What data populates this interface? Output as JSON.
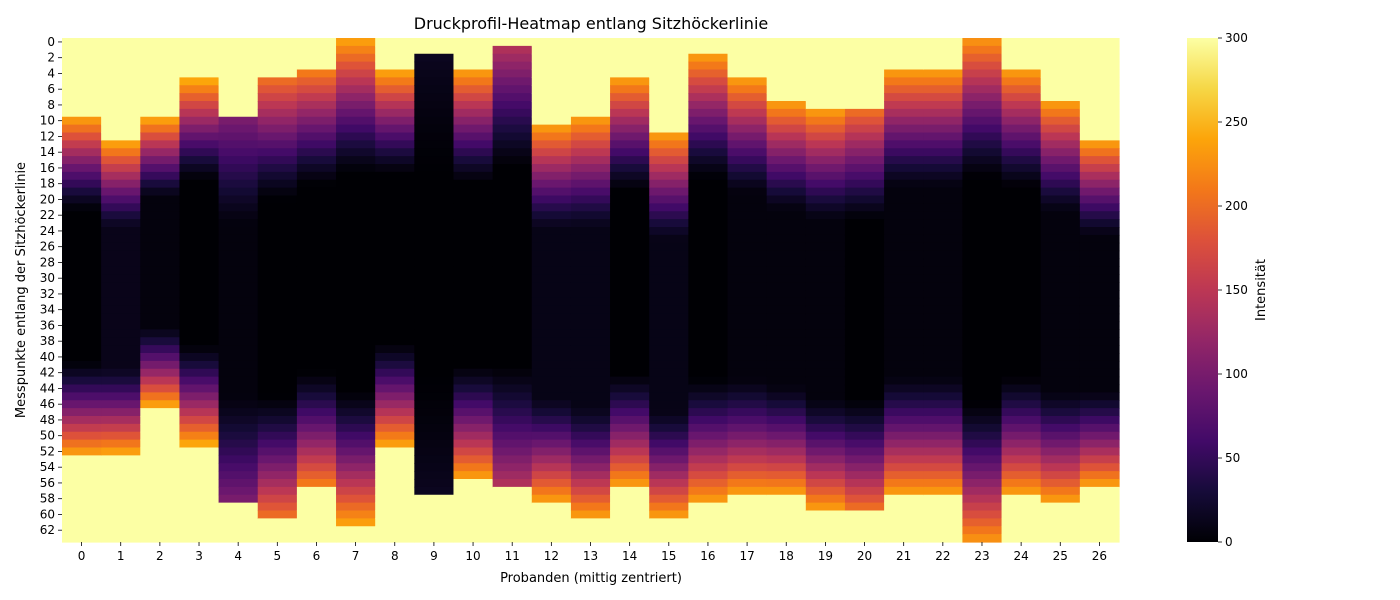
{
  "chart_data": {
    "type": "heatmap",
    "title": "Druckprofil-Heatmap entlang Sitzhöckerlinie",
    "xlabel": "Probanden (mittig zentriert)",
    "ylabel": "Messpunkte entlang der Sitzhöckerlinie",
    "colorbar_label": "Intensität",
    "colormap": "inferno",
    "vmin": 0,
    "vmax": 300,
    "colorbar_ticks": [
      0,
      50,
      100,
      150,
      200,
      250,
      300
    ],
    "x_ticks": [
      "0",
      "1",
      "2",
      "3",
      "4",
      "5",
      "6",
      "7",
      "8",
      "9",
      "10",
      "11",
      "12",
      "13",
      "14",
      "15",
      "16",
      "17",
      "18",
      "19",
      "20",
      "21",
      "22",
      "23",
      "24",
      "25",
      "26"
    ],
    "y_ticks": [
      "0",
      "2",
      "4",
      "6",
      "8",
      "10",
      "12",
      "14",
      "16",
      "18",
      "20",
      "22",
      "24",
      "26",
      "28",
      "30",
      "32",
      "34",
      "36",
      "38",
      "40",
      "42",
      "44",
      "46",
      "48",
      "50",
      "52",
      "54",
      "56",
      "58",
      "60",
      "62"
    ],
    "n_rows": 64,
    "background_value": 300,
    "columns": [
      {
        "subject": 0,
        "start": 10,
        "end": 52,
        "edge": 230,
        "floor": 0
      },
      {
        "subject": 1,
        "start": 13,
        "end": 52,
        "edge": 235,
        "floor": 12
      },
      {
        "subject": 2,
        "start": 10,
        "end": 46,
        "edge": 235,
        "floor": 5
      },
      {
        "subject": 3,
        "start": 5,
        "end": 51,
        "edge": 240,
        "floor": 0
      },
      {
        "subject": 4,
        "start": 10,
        "end": 58,
        "edge": 100,
        "floor": 5
      },
      {
        "subject": 5,
        "start": 5,
        "end": 60,
        "edge": 200,
        "floor": 0
      },
      {
        "subject": 6,
        "start": 4,
        "end": 56,
        "edge": 210,
        "floor": 0
      },
      {
        "subject": 7,
        "start": 0,
        "end": 61,
        "edge": 235,
        "floor": 0
      },
      {
        "subject": 8,
        "start": 4,
        "end": 51,
        "edge": 235,
        "floor": 0
      },
      {
        "subject": 9,
        "start": 2,
        "end": 57,
        "edge": 15,
        "floor": 0
      },
      {
        "subject": 10,
        "start": 4,
        "end": 55,
        "edge": 230,
        "floor": 0
      },
      {
        "subject": 11,
        "start": 1,
        "end": 56,
        "edge": 140,
        "floor": 0
      },
      {
        "subject": 12,
        "start": 11,
        "end": 58,
        "edge": 230,
        "floor": 10
      },
      {
        "subject": 13,
        "start": 10,
        "end": 60,
        "edge": 230,
        "floor": 10
      },
      {
        "subject": 14,
        "start": 5,
        "end": 56,
        "edge": 230,
        "floor": 0
      },
      {
        "subject": 15,
        "start": 12,
        "end": 60,
        "edge": 230,
        "floor": 10
      },
      {
        "subject": 16,
        "start": 2,
        "end": 58,
        "edge": 230,
        "floor": 0
      },
      {
        "subject": 17,
        "start": 5,
        "end": 57,
        "edge": 230,
        "floor": 5
      },
      {
        "subject": 18,
        "start": 8,
        "end": 57,
        "edge": 230,
        "floor": 5
      },
      {
        "subject": 19,
        "start": 9,
        "end": 59,
        "edge": 230,
        "floor": 5
      },
      {
        "subject": 20,
        "start": 9,
        "end": 59,
        "edge": 200,
        "floor": 0
      },
      {
        "subject": 21,
        "start": 4,
        "end": 57,
        "edge": 230,
        "floor": 5
      },
      {
        "subject": 22,
        "start": 4,
        "end": 57,
        "edge": 230,
        "floor": 5
      },
      {
        "subject": 23,
        "start": 0,
        "end": 63,
        "edge": 225,
        "floor": 0
      },
      {
        "subject": 24,
        "start": 4,
        "end": 57,
        "edge": 230,
        "floor": 0
      },
      {
        "subject": 25,
        "start": 8,
        "end": 58,
        "edge": 230,
        "floor": 5
      },
      {
        "subject": 26,
        "start": 13,
        "end": 56,
        "edge": 230,
        "floor": 5
      }
    ]
  }
}
